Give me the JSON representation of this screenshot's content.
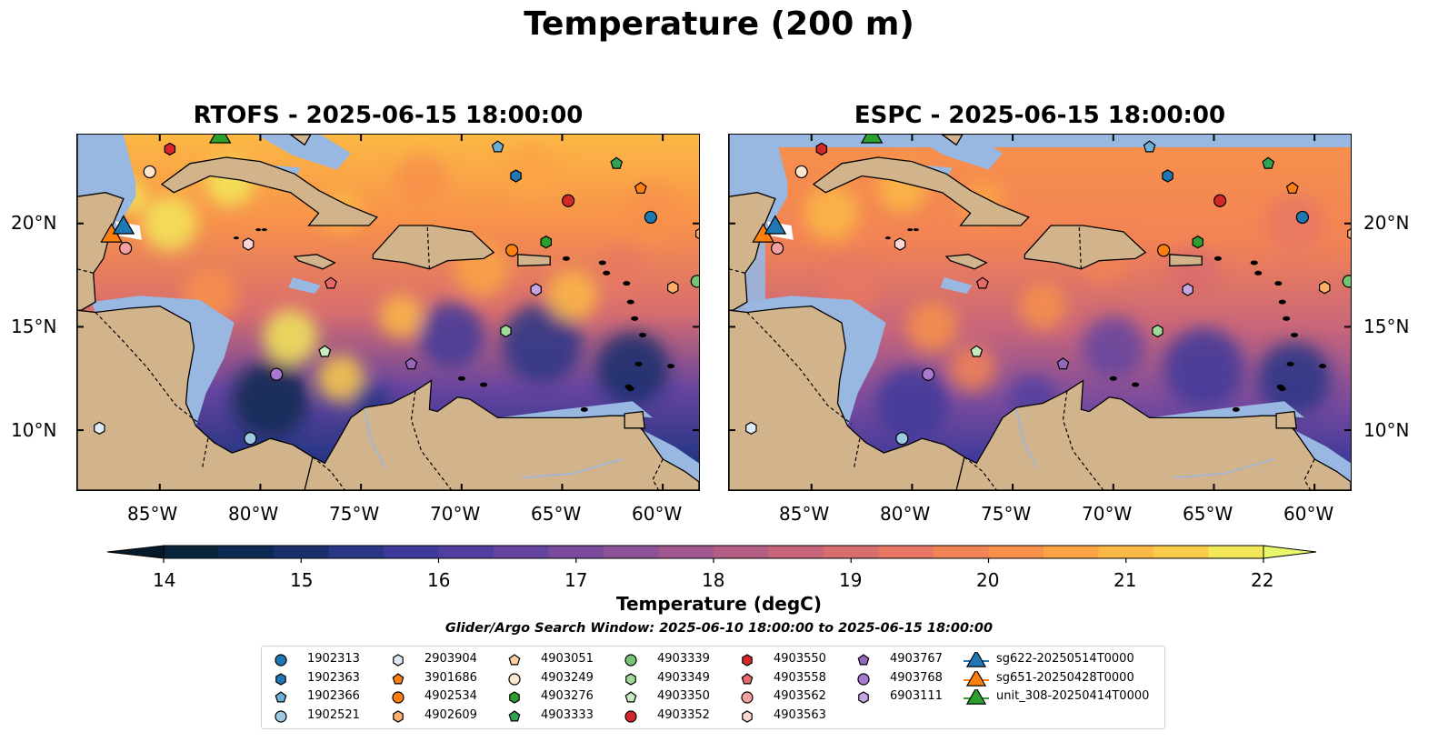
{
  "suptitle": "Temperature (200 m)",
  "panels": [
    {
      "title": "RTOFS - 2025-06-15 18:00:00"
    },
    {
      "title": "ESPC - 2025-06-15 18:00:00"
    }
  ],
  "lon_ticks": [
    "85°W",
    "80°W",
    "75°W",
    "70°W",
    "65°W",
    "60°W"
  ],
  "lat_ticks": [
    "20°N",
    "15°N",
    "10°N"
  ],
  "colorbar": {
    "label": "Temperature (degC)",
    "ticks": [
      "14",
      "15",
      "16",
      "17",
      "18",
      "19",
      "20",
      "21",
      "22"
    ],
    "colors": [
      "#08243a",
      "#0d2a52",
      "#19306b",
      "#2a3786",
      "#3e3a9a",
      "#523ea0",
      "#6544a0",
      "#7a4b9d",
      "#8d5197",
      "#a1578f",
      "#b45e86",
      "#c7657b",
      "#d86d6f",
      "#e77763",
      "#f28355",
      "#f7914b",
      "#fba345",
      "#fcb844",
      "#fbcc49",
      "#f2e85a"
    ],
    "over_color": "#e9f86a"
  },
  "search_window": "Glider/Argo Search Window: 2025-06-10 18:00:00 to 2025-06-15 18:00:00",
  "legend": [
    {
      "label": "1902313",
      "marker": "circle",
      "color": "#1f77b4"
    },
    {
      "label": "1902363",
      "marker": "hexagon",
      "color": "#1f77b4"
    },
    {
      "label": "1902366",
      "marker": "pentagon",
      "color": "#6baed6"
    },
    {
      "label": "1902521",
      "marker": "circle",
      "color": "#9ecae1"
    },
    {
      "label": "2903904",
      "marker": "hexagon",
      "color": "#deebf7"
    },
    {
      "label": "3901686",
      "marker": "pentagon",
      "color": "#ff7f0e"
    },
    {
      "label": "4902534",
      "marker": "circle",
      "color": "#ff7f0e"
    },
    {
      "label": "4902609",
      "marker": "hexagon",
      "color": "#fdae6b"
    },
    {
      "label": "4903051",
      "marker": "pentagon",
      "color": "#fdd0a2"
    },
    {
      "label": "4903249",
      "marker": "circle",
      "color": "#fee6ce"
    },
    {
      "label": "4903276",
      "marker": "hexagon",
      "color": "#2ca02c"
    },
    {
      "label": "4903333",
      "marker": "pentagon",
      "color": "#31a354"
    },
    {
      "label": "4903339",
      "marker": "circle",
      "color": "#74c476"
    },
    {
      "label": "4903349",
      "marker": "hexagon",
      "color": "#a1d99b"
    },
    {
      "label": "4903350",
      "marker": "pentagon",
      "color": "#c7e9c0"
    },
    {
      "label": "4903352",
      "marker": "circle",
      "color": "#d62728"
    },
    {
      "label": "4903550",
      "marker": "hexagon",
      "color": "#d62728"
    },
    {
      "label": "4903558",
      "marker": "pentagon",
      "color": "#e7696a"
    },
    {
      "label": "4903562",
      "marker": "circle",
      "color": "#f4a0a0"
    },
    {
      "label": "4903563",
      "marker": "hexagon",
      "color": "#fdd5d5"
    },
    {
      "label": "4903767",
      "marker": "pentagon",
      "color": "#9467bd"
    },
    {
      "label": "4903768",
      "marker": "circle",
      "color": "#a979d1"
    },
    {
      "label": "6903111",
      "marker": "hexagon",
      "color": "#c5a5e3"
    },
    {
      "label": "sg622-20250514T0000",
      "marker": "triangle",
      "color": "#1f77b4"
    },
    {
      "label": "sg651-20250428T0000",
      "marker": "triangle",
      "color": "#ff7f0e"
    },
    {
      "label": "unit_308-20250414T0000",
      "marker": "triangle",
      "color": "#2ca02c"
    }
  ],
  "points": [
    {
      "lon": -84.5,
      "lat": 23.6,
      "marker": "hexagon",
      "color": "#d62728"
    },
    {
      "lon": -85.5,
      "lat": 22.5,
      "marker": "circle",
      "color": "#fee6ce"
    },
    {
      "lon": -86.7,
      "lat": 18.8,
      "marker": "circle",
      "color": "#f4a0a0"
    },
    {
      "lon": -80.6,
      "lat": 19.0,
      "marker": "hexagon",
      "color": "#fdd5d5"
    },
    {
      "lon": -76.5,
      "lat": 17.1,
      "marker": "pentagon",
      "color": "#e7696a"
    },
    {
      "lon": -76.8,
      "lat": 13.8,
      "marker": "pentagon",
      "color": "#c7e9c0"
    },
    {
      "lon": -79.2,
      "lat": 12.7,
      "marker": "circle",
      "color": "#a979d1"
    },
    {
      "lon": -72.5,
      "lat": 13.2,
      "marker": "pentagon",
      "color": "#9467bd"
    },
    {
      "lon": -80.5,
      "lat": 9.6,
      "marker": "circle",
      "color": "#9ecae1"
    },
    {
      "lon": -88.0,
      "lat": 10.1,
      "marker": "hexagon",
      "color": "#deebf7"
    },
    {
      "lon": -68.2,
      "lat": 23.7,
      "marker": "pentagon",
      "color": "#6baed6"
    },
    {
      "lon": -67.3,
      "lat": 22.3,
      "marker": "hexagon",
      "color": "#1f77b4"
    },
    {
      "lon": -62.3,
      "lat": 22.9,
      "marker": "pentagon",
      "color": "#31a354"
    },
    {
      "lon": -61.1,
      "lat": 21.7,
      "marker": "pentagon",
      "color": "#ff7f0e"
    },
    {
      "lon": -64.7,
      "lat": 21.1,
      "marker": "circle",
      "color": "#d62728"
    },
    {
      "lon": -60.6,
      "lat": 20.3,
      "marker": "circle",
      "color": "#1f77b4"
    },
    {
      "lon": -67.5,
      "lat": 18.7,
      "marker": "circle",
      "color": "#ff7f0e"
    },
    {
      "lon": -65.8,
      "lat": 19.1,
      "marker": "hexagon",
      "color": "#2ca02c"
    },
    {
      "lon": -58.1,
      "lat": 19.5,
      "marker": "hexagon",
      "color": "#fdae6b"
    },
    {
      "lon": -66.3,
      "lat": 16.8,
      "marker": "hexagon",
      "color": "#c5a5e3"
    },
    {
      "lon": -59.5,
      "lat": 16.9,
      "marker": "hexagon",
      "color": "#fdae6b"
    },
    {
      "lon": -58.3,
      "lat": 17.2,
      "marker": "circle",
      "color": "#74c476"
    },
    {
      "lon": -67.8,
      "lat": 14.8,
      "marker": "hexagon",
      "color": "#a1d99b"
    }
  ],
  "gliders": [
    {
      "lon": -87.4,
      "lat": 19.5,
      "color": "#ff7f0e"
    },
    {
      "lon": -86.8,
      "lat": 19.9,
      "color": "#1f77b4"
    },
    {
      "lon": -82.0,
      "lat": 24.3,
      "color": "#2ca02c"
    }
  ],
  "map_colors": {
    "land": "#d2b48c",
    "shelf": "#98b7e1",
    "deep": "#08243a"
  }
}
